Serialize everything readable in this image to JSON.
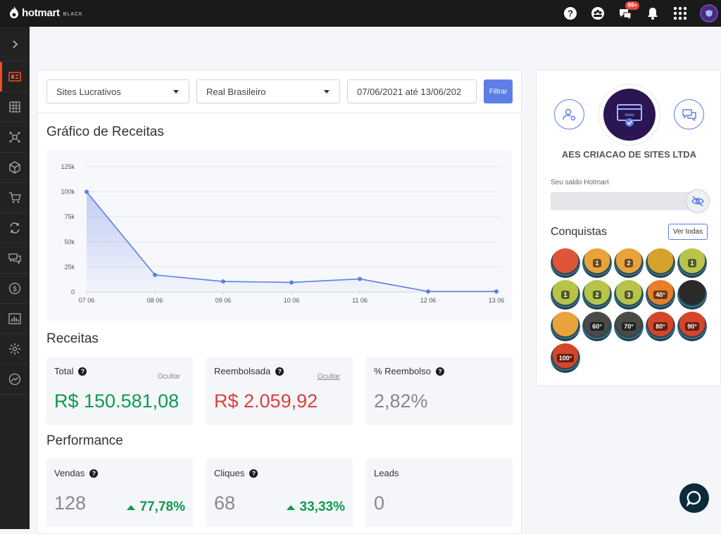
{
  "brand": {
    "name": "hotmart",
    "tier": "BLACK"
  },
  "topbar": {
    "notifications_badge": "99+"
  },
  "filters": {
    "product": "Sites Lucrativos",
    "currency": "Real Brasileiro",
    "date_range": "07/06/2021 até 13/06/202",
    "filter_button": "Filtrar"
  },
  "chart_title": "Gráfico de Receitas",
  "chart_data": {
    "type": "area",
    "categories": [
      "07 06",
      "08 06",
      "09 06",
      "10 06",
      "11 06",
      "12 06",
      "13 06"
    ],
    "values": [
      100000,
      17000,
      10500,
      9500,
      13000,
      500,
      500
    ],
    "yticks": [
      "0",
      "25k",
      "50k",
      "75k",
      "100k",
      "125k"
    ],
    "ylim": [
      0,
      125000
    ],
    "color": "#5c7ee6",
    "grid": true
  },
  "receitas": {
    "title": "Receitas",
    "total": {
      "label": "Total",
      "hide": "Ocultar",
      "value": "R$ 150.581,08",
      "color": "#0e9b4e"
    },
    "reembolsada": {
      "label": "Reembolsada",
      "hide": "Ocultar",
      "value": "R$ 2.059,92",
      "color": "#d9413a"
    },
    "pct_reembolso": {
      "label": "% Reembolso",
      "value": "2,82%"
    }
  },
  "performance": {
    "title": "Performance",
    "vendas": {
      "label": "Vendas",
      "value": "128",
      "delta": "77,78%"
    },
    "cliques": {
      "label": "Cliques",
      "value": "68",
      "delta": "33,33%"
    },
    "leads": {
      "label": "Leads",
      "value": "0"
    }
  },
  "profile": {
    "company": "AES CRIACAO DE SITES LTDA",
    "saldo_label": "Seu saldo Hotmart",
    "conquistas_title": "Conquistas",
    "ver_todas": "Ver todas",
    "medals": [
      {
        "label": "",
        "color": "#e0543a"
      },
      {
        "label": "1",
        "color": "#e8a33c"
      },
      {
        "label": "2",
        "color": "#e8a33c"
      },
      {
        "label": "",
        "color": "#d6a22e"
      },
      {
        "label": "1",
        "color": "#b6c54a"
      },
      {
        "label": "1",
        "color": "#b6c54a"
      },
      {
        "label": "2",
        "color": "#b6c54a"
      },
      {
        "label": "3",
        "color": "#b6c54a"
      },
      {
        "label": "40°",
        "color": "#e87d2c"
      },
      {
        "label": "",
        "color": "#2a2a2a"
      },
      {
        "label": "",
        "color": "#e8a33c"
      },
      {
        "label": "60°",
        "color": "#4a4a4a"
      },
      {
        "label": "70°",
        "color": "#4a4a4a"
      },
      {
        "label": "80°",
        "color": "#d4452a"
      },
      {
        "label": "90°",
        "color": "#d4452a"
      },
      {
        "label": "100°",
        "color": "#d4452a"
      }
    ]
  }
}
